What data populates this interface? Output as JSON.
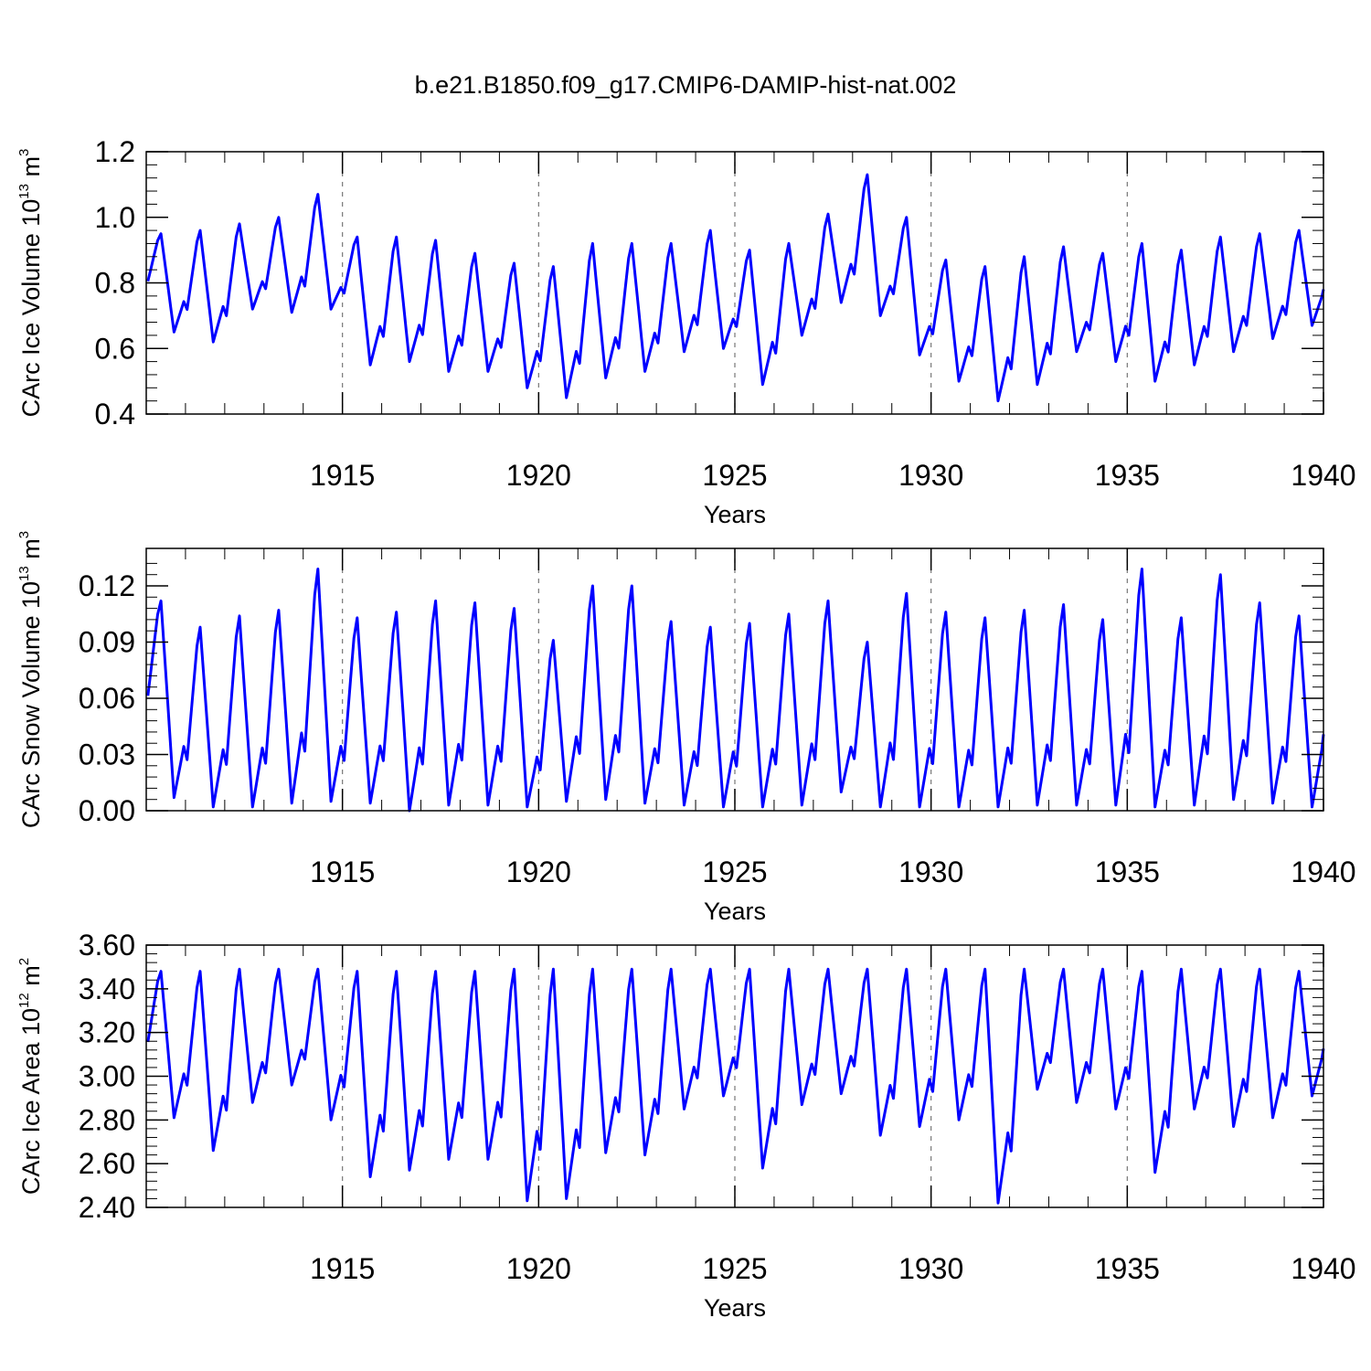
{
  "chart_data": {
    "title": "b.e21.B1850.f09_g17.CMIP6-DAMIP-hist-nat.002",
    "line_color": "#0000ff",
    "panels": [
      {
        "type": "line",
        "ylabel": "CArc Ice Volume 10",
        "ylabel_exp": "13",
        "ylabel_unit": " m",
        "ylabel_unit_exp": "3",
        "xlabel": "Years",
        "xlim": [
          1910,
          1940
        ],
        "ylim": [
          0.4,
          1.2
        ],
        "x_ticks": [
          "1915",
          "1920",
          "1925",
          "1930",
          "1935",
          "1940"
        ],
        "x_tick_values": [
          1915,
          1920,
          1925,
          1930,
          1935,
          1940
        ],
        "y_ticks": [
          "0.4",
          "0.6",
          "0.8",
          "1.0",
          "1.2"
        ],
        "y_tick_values": [
          0.4,
          0.6,
          0.8,
          1.0,
          1.2
        ],
        "y_minor_step": 0.04,
        "seasonal": {
          "max": [
            0.95,
            0.96,
            0.98,
            1.0,
            1.07,
            0.94,
            0.94,
            0.93,
            0.89,
            0.86,
            0.85,
            0.92,
            0.92,
            0.92,
            0.96,
            0.9,
            0.92,
            1.01,
            1.13,
            1.0,
            0.87,
            0.85,
            0.88,
            0.91,
            0.89,
            0.92,
            0.9,
            0.94,
            0.95,
            0.96
          ],
          "min": [
            0.65,
            0.62,
            0.72,
            0.71,
            0.72,
            0.55,
            0.56,
            0.53,
            0.53,
            0.48,
            0.45,
            0.51,
            0.53,
            0.59,
            0.6,
            0.49,
            0.64,
            0.74,
            0.7,
            0.58,
            0.5,
            0.44,
            0.49,
            0.59,
            0.56,
            0.5,
            0.55,
            0.59,
            0.63,
            0.67
          ]
        }
      },
      {
        "type": "line",
        "ylabel": "CArc Snow Volume 10",
        "ylabel_exp": "13",
        "ylabel_unit": " m",
        "ylabel_unit_exp": "3",
        "xlabel": "Years",
        "xlim": [
          1910,
          1940
        ],
        "ylim": [
          0.0,
          0.14
        ],
        "x_ticks": [
          "1915",
          "1920",
          "1925",
          "1930",
          "1935",
          "1940"
        ],
        "x_tick_values": [
          1915,
          1920,
          1925,
          1930,
          1935,
          1940
        ],
        "y_ticks": [
          "0.00",
          "0.03",
          "0.06",
          "0.09",
          "0.12"
        ],
        "y_tick_values": [
          0.0,
          0.03,
          0.06,
          0.09,
          0.12
        ],
        "y_minor_step": 0.006,
        "seasonal": {
          "max": [
            0.112,
            0.098,
            0.104,
            0.107,
            0.129,
            0.103,
            0.106,
            0.112,
            0.111,
            0.108,
            0.091,
            0.12,
            0.12,
            0.101,
            0.098,
            0.1,
            0.105,
            0.112,
            0.09,
            0.116,
            0.106,
            0.103,
            0.107,
            0.11,
            0.102,
            0.129,
            0.103,
            0.126,
            0.111,
            0.104
          ],
          "min": [
            0.007,
            0.002,
            0.002,
            0.004,
            0.005,
            0.004,
            0.0,
            0.003,
            0.003,
            0.002,
            0.005,
            0.006,
            0.004,
            0.003,
            0.002,
            0.002,
            0.003,
            0.01,
            0.002,
            0.002,
            0.002,
            0.002,
            0.003,
            0.003,
            0.003,
            0.002,
            0.003,
            0.006,
            0.004,
            0.002
          ]
        }
      },
      {
        "type": "line",
        "ylabel": "CArc Ice Area 10",
        "ylabel_exp": "12",
        "ylabel_unit": " m",
        "ylabel_unit_exp": "2",
        "xlabel": "Years",
        "xlim": [
          1910,
          1940
        ],
        "ylim": [
          2.4,
          3.6
        ],
        "x_ticks": [
          "1915",
          "1920",
          "1925",
          "1930",
          "1935",
          "1940"
        ],
        "x_tick_values": [
          1915,
          1920,
          1925,
          1930,
          1935,
          1940
        ],
        "y_ticks": [
          "2.40",
          "2.60",
          "2.80",
          "3.00",
          "3.20",
          "3.40",
          "3.60"
        ],
        "y_tick_values": [
          2.4,
          2.6,
          2.8,
          3.0,
          3.2,
          3.4,
          3.6
        ],
        "y_minor_step": 0.04,
        "seasonal": {
          "max": [
            3.48,
            3.48,
            3.49,
            3.49,
            3.49,
            3.48,
            3.48,
            3.48,
            3.48,
            3.49,
            3.49,
            3.49,
            3.49,
            3.49,
            3.49,
            3.49,
            3.49,
            3.49,
            3.49,
            3.49,
            3.49,
            3.49,
            3.49,
            3.49,
            3.49,
            3.48,
            3.49,
            3.49,
            3.49,
            3.48
          ],
          "min": [
            2.81,
            2.66,
            2.88,
            2.96,
            2.8,
            2.54,
            2.57,
            2.62,
            2.62,
            2.43,
            2.44,
            2.65,
            2.64,
            2.85,
            2.91,
            2.58,
            2.87,
            2.92,
            2.73,
            2.77,
            2.8,
            2.42,
            2.94,
            2.88,
            2.85,
            2.56,
            2.85,
            2.77,
            2.81,
            2.91
          ]
        }
      }
    ]
  }
}
